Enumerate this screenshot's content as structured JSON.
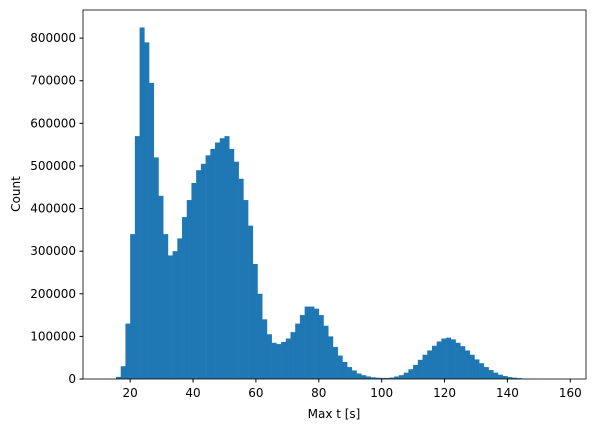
{
  "chart_data": {
    "type": "histogram",
    "xlabel": "Max t [s]",
    "ylabel": "Count",
    "color": "#1f77b4",
    "bins": [
      15.5,
      17,
      18.5,
      20,
      21.5,
      23,
      24.5,
      26,
      27.5,
      29,
      30.5,
      32,
      33.5,
      35,
      36.5,
      38,
      39.5,
      41,
      42.5,
      44,
      45.5,
      47,
      48.5,
      50,
      51.5,
      53,
      54.5,
      56,
      57.5,
      59,
      60.5,
      62,
      63.5,
      65,
      66.5,
      68,
      69.5,
      71,
      72.5,
      74,
      75.5,
      77,
      78.5,
      80,
      81.5,
      83,
      84.5,
      86,
      87.5,
      89,
      90.5,
      92,
      93.5,
      95,
      96.5,
      98,
      99.5,
      101,
      102.5,
      104,
      105.5,
      107,
      108.5,
      110,
      111.5,
      113,
      114.5,
      116,
      117.5,
      119,
      120.5,
      122,
      123.5,
      125,
      126.5,
      128,
      129.5,
      131,
      132.5,
      134,
      135.5,
      137,
      138.5,
      140,
      141.5,
      143,
      144.5,
      146,
      147.5,
      149,
      150.5,
      152
    ],
    "counts": [
      5000,
      30000,
      130000,
      340000,
      570000,
      825000,
      790000,
      695000,
      520000,
      430000,
      340000,
      290000,
      300000,
      330000,
      380000,
      420000,
      460000,
      490000,
      505000,
      525000,
      540000,
      555000,
      565000,
      570000,
      540000,
      510000,
      470000,
      420000,
      360000,
      270000,
      200000,
      140000,
      105000,
      85000,
      82000,
      87000,
      95000,
      110000,
      130000,
      150000,
      170000,
      170000,
      165000,
      150000,
      125000,
      100000,
      75000,
      55000,
      40000,
      28000,
      20000,
      13000,
      9000,
      6000,
      4000,
      3000,
      2500,
      2500,
      3500,
      6000,
      9000,
      15000,
      23000,
      33000,
      45000,
      57000,
      67000,
      78000,
      88000,
      95000,
      97000,
      93000,
      85000,
      77000,
      67000,
      57000,
      46000,
      37000,
      28000,
      21000,
      15000,
      10000,
      7000,
      4500,
      3000,
      2000,
      1000,
      700,
      400,
      200,
      100
    ],
    "xlim": [
      5,
      165
    ],
    "xticks": [
      20,
      40,
      60,
      80,
      100,
      120,
      140,
      160
    ],
    "ylim": [
      0,
      866000
    ],
    "yticks": [
      0,
      100000,
      200000,
      300000,
      400000,
      500000,
      600000,
      700000,
      800000
    ]
  }
}
